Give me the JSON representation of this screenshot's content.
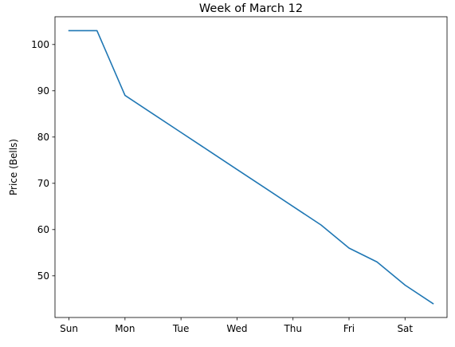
{
  "chart_data": {
    "type": "line",
    "title": "Week of March 12",
    "xlabel": "",
    "ylabel": "Price (Bells)",
    "categories": [
      "Sun",
      "Mon",
      "Tue",
      "Wed",
      "Thu",
      "Fri",
      "Sat"
    ],
    "x": [
      0,
      0.5,
      1,
      1.5,
      2,
      2.5,
      3,
      3.5,
      4,
      4.5,
      5,
      5.5,
      6,
      6.5
    ],
    "y_ticks": [
      50,
      60,
      70,
      80,
      90,
      100
    ],
    "ylim": [
      41,
      106
    ],
    "xlim": [
      -0.25,
      6.75
    ],
    "grid": false,
    "series": [
      {
        "color": "#1f77b4",
        "values": [
          103,
          103,
          89,
          85,
          81,
          77,
          73,
          69,
          65,
          61,
          56,
          53,
          48,
          44
        ]
      }
    ]
  }
}
